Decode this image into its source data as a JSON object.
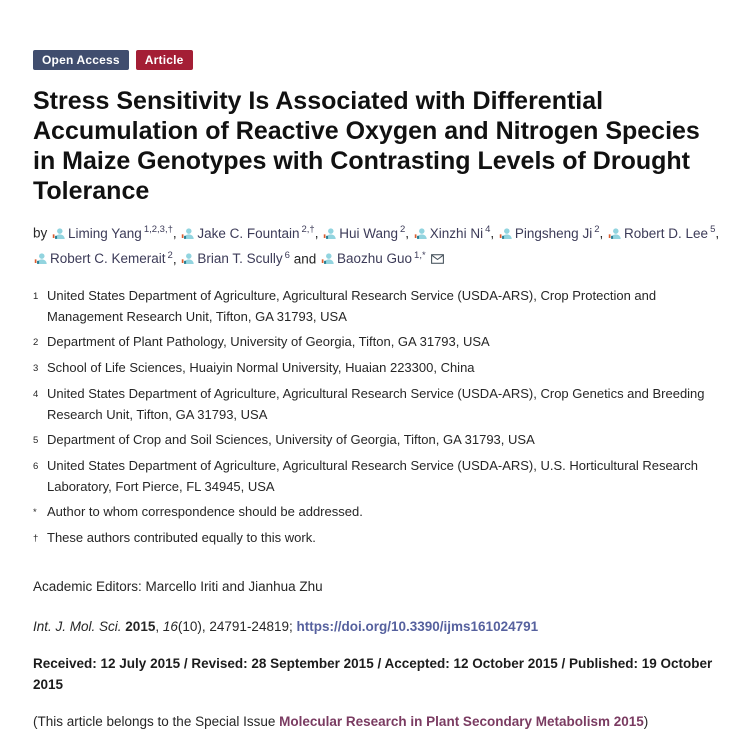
{
  "badges": {
    "open_access": "Open Access",
    "article": "Article"
  },
  "title": "Stress Sensitivity Is Associated with Differential Accumulation of Reactive Oxygen and Nitrogen Species in Maize Genotypes with Contrasting Levels of Drought Tolerance",
  "byline": {
    "prefix": "by ",
    "separator": ", ",
    "and_word": "and"
  },
  "authors": [
    {
      "name": "Liming Yang",
      "sup": "1,2,3,†"
    },
    {
      "name": "Jake C. Fountain",
      "sup": "2,†"
    },
    {
      "name": "Hui Wang",
      "sup": "2"
    },
    {
      "name": "Xinzhi Ni",
      "sup": "4"
    },
    {
      "name": "Pingsheng Ji",
      "sup": "2"
    },
    {
      "name": "Robert D. Lee",
      "sup": "5"
    },
    {
      "name": "Robert C. Kemerait",
      "sup": "2"
    },
    {
      "name": "Brian T. Scully",
      "sup": "6"
    },
    {
      "name": "Baozhu Guo",
      "sup": "1,*",
      "corresponding": true
    }
  ],
  "affiliations": [
    {
      "marker": "1",
      "text": "United States Department of Agriculture, Agricultural Research Service (USDA-ARS), Crop Protection and Management Research Unit, Tifton, GA 31793, USA"
    },
    {
      "marker": "2",
      "text": "Department of Plant Pathology, University of Georgia, Tifton, GA 31793, USA"
    },
    {
      "marker": "3",
      "text": "School of Life Sciences, Huaiyin Normal University, Huaian 223300, China"
    },
    {
      "marker": "4",
      "text": "United States Department of Agriculture, Agricultural Research Service (USDA-ARS), Crop Genetics and Breeding Research Unit, Tifton, GA 31793, USA"
    },
    {
      "marker": "5",
      "text": "Department of Crop and Soil Sciences, University of Georgia, Tifton, GA 31793, USA"
    },
    {
      "marker": "6",
      "text": "United States Department of Agriculture, Agricultural Research Service (USDA-ARS), U.S. Horticultural Research Laboratory, Fort Pierce, FL 34945, USA"
    },
    {
      "marker": "*",
      "text": "Author to whom correspondence should be addressed."
    },
    {
      "marker": "†",
      "text": "These authors contributed equally to this work."
    }
  ],
  "editors_line": "Academic Editors: Marcello Iriti and Jianhua Zhu",
  "citation": {
    "journal": "Int. J. Mol. Sci.",
    "year": "2015",
    "sep1": ", ",
    "volume": "16",
    "pages": "(10), 24791-24819;",
    "doi_label": "https://doi.org/10.3390/ijms161024791"
  },
  "history": "Received: 12 July 2015 / Revised: 28 September 2015 / Accepted: 12 October 2015 / Published: 19 October 2015",
  "special_issue": {
    "prefix": "(This article belongs to the Special Issue ",
    "link": "Molecular Research in Plant Secondary Metabolism 2015",
    "suffix": ")"
  },
  "icons": {
    "author_icon": "sciprofile-person-icon",
    "correspondence_icon": "email-envelope-icon"
  },
  "colors": {
    "open_access_bg": "#404d6e",
    "article_bg": "#a41e35",
    "badge_text": "#ffffff",
    "author_link": "#3c3b58",
    "doi_link": "#56619e",
    "si_link": "#7a3b61",
    "body_text": "#262626",
    "title_text": "#111111",
    "icon_teal": "#92d4df",
    "icon_dark_teal": "#2b7f95",
    "icon_orange": "#d95b2e",
    "mail_stroke": "#44505a"
  }
}
